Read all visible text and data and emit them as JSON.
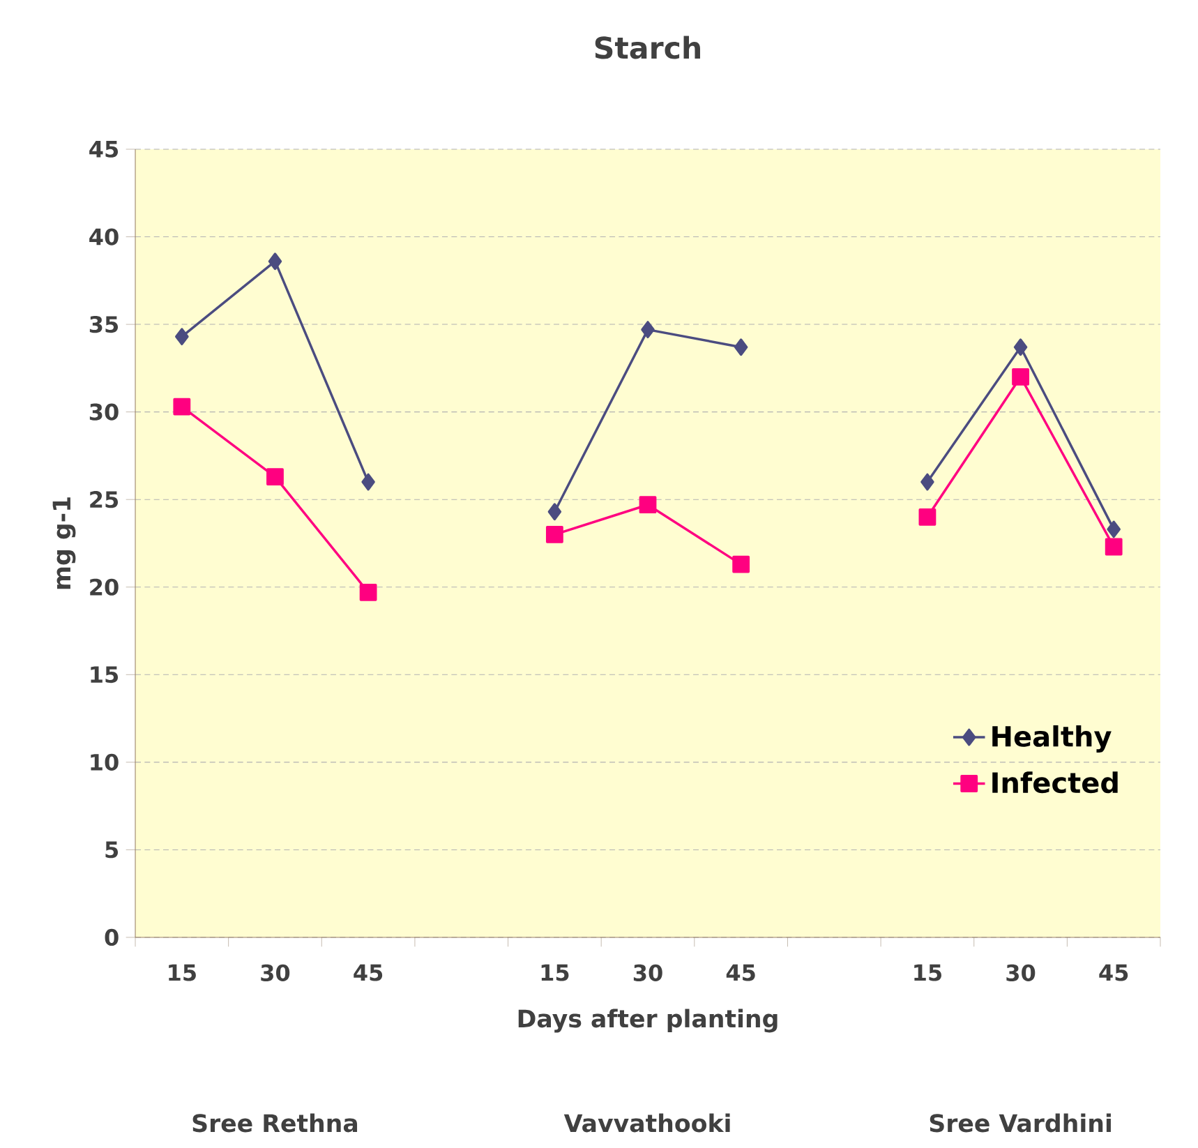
{
  "chart_data": {
    "type": "line",
    "title": "Starch",
    "xlabel": "Days after planting",
    "ylabel": "mg g-1",
    "categories": [
      "15",
      "30",
      "45",
      null,
      "15",
      "30",
      "45",
      null,
      "15",
      "30",
      "45"
    ],
    "series": [
      {
        "name": "Healthy",
        "color": "#4b4c80",
        "marker": "diamond",
        "values": [
          34.3,
          38.6,
          26.0,
          null,
          24.3,
          34.7,
          33.7,
          null,
          26.0,
          33.7,
          23.3
        ]
      },
      {
        "name": "Infected",
        "color": "#ff0080",
        "marker": "square",
        "values": [
          30.3,
          26.3,
          19.7,
          null,
          23.0,
          24.7,
          21.3,
          null,
          24.0,
          32.0,
          22.3
        ]
      }
    ],
    "ylim": [
      0,
      45
    ],
    "yticks": [
      0,
      5,
      10,
      15,
      20,
      25,
      30,
      35,
      40,
      45
    ],
    "grid": "y",
    "legend": "bottom right",
    "annotations": [
      "Sree Rethna",
      "Vavvathooki",
      "Sree Vardhini"
    ]
  }
}
